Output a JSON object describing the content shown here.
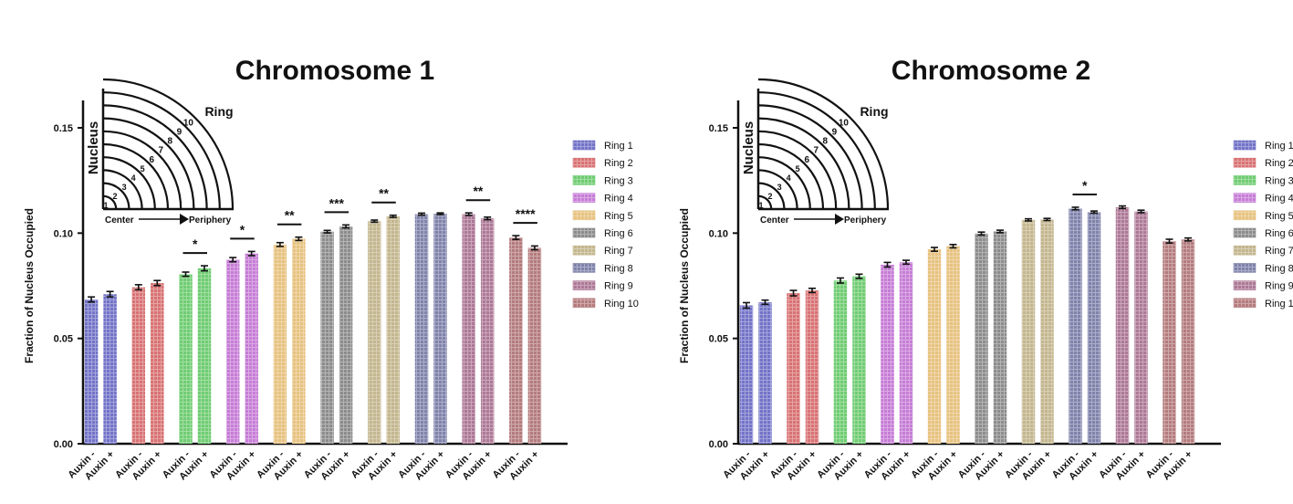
{
  "chart_data": [
    {
      "type": "bar",
      "title": "Chromosome 1",
      "ylabel": "Fraction of Nucleus Occupied",
      "ylim": [
        0,
        0.16
      ],
      "yticks": [
        "0.00",
        "0.05",
        "0.10",
        "0.15"
      ],
      "groups": [
        "Ring 1",
        "Ring 2",
        "Ring 3",
        "Ring 4",
        "Ring 5",
        "Ring 6",
        "Ring 7",
        "Ring 8",
        "Ring 9",
        "Ring 10"
      ],
      "conditions": [
        "Auxin -",
        "Auxin +"
      ],
      "series": [
        {
          "name": "Auxin -",
          "values": [
            0.0685,
            0.0743,
            0.0805,
            0.0874,
            0.0946,
            0.1007,
            0.1057,
            0.109,
            0.109,
            0.0979
          ],
          "errors": [
            0.0012,
            0.0012,
            0.001,
            0.001,
            0.0009,
            0.0006,
            0.0005,
            0.0005,
            0.0006,
            0.0009
          ]
        },
        {
          "name": "Auxin +",
          "values": [
            0.071,
            0.0763,
            0.0833,
            0.0903,
            0.0973,
            0.1032,
            0.108,
            0.1092,
            0.107,
            0.093
          ],
          "errors": [
            0.0013,
            0.0012,
            0.0012,
            0.001,
            0.0008,
            0.0007,
            0.0005,
            0.0004,
            0.0006,
            0.0009
          ]
        }
      ],
      "significance": [
        "",
        "",
        "*",
        "*",
        "**",
        "***",
        "**",
        "",
        "**",
        "****"
      ],
      "legend": [
        "Ring 1",
        "Ring 2",
        "Ring 3",
        "Ring 4",
        "Ring 5",
        "Ring 6",
        "Ring 7",
        "Ring 8",
        "Ring 9",
        "Ring 10"
      ],
      "legend_position": "right",
      "grid": false
    },
    {
      "type": "bar",
      "title": "Chromosome 2",
      "ylabel": "Fraction of Nucleus Occupied",
      "ylim": [
        0,
        0.16
      ],
      "yticks": [
        "0.00",
        "0.05",
        "0.10",
        "0.15"
      ],
      "groups": [
        "Ring 1",
        "Ring 2",
        "Ring 3",
        "Ring 4",
        "Ring 5",
        "Ring 6",
        "Ring 7",
        "Ring 8",
        "Ring 9",
        "Ring 10"
      ],
      "conditions": [
        "Auxin -",
        "Auxin +"
      ],
      "series": [
        {
          "name": "Auxin -",
          "values": [
            0.0657,
            0.0715,
            0.0775,
            0.085,
            0.0923,
            0.0998,
            0.1063,
            0.1117,
            0.1123,
            0.0962
          ],
          "errors": [
            0.0013,
            0.0013,
            0.0012,
            0.0011,
            0.0009,
            0.0007,
            0.0005,
            0.0006,
            0.0006,
            0.0009
          ]
        },
        {
          "name": "Auxin +",
          "values": [
            0.0672,
            0.0728,
            0.0795,
            0.0862,
            0.0938,
            0.1008,
            0.1065,
            0.11,
            0.1103,
            0.097
          ],
          "errors": [
            0.001,
            0.001,
            0.001,
            0.0009,
            0.0008,
            0.0006,
            0.0005,
            0.0005,
            0.0006,
            0.0007
          ]
        }
      ],
      "significance": [
        "",
        "",
        "",
        "",
        "",
        "",
        "",
        "*",
        "",
        ""
      ],
      "legend": [
        "Ring 1",
        "Ring 2",
        "Ring 3",
        "Ring 4",
        "Ring 5",
        "Ring 6",
        "Ring 7",
        "Ring 8",
        "Ring 9",
        "Ring 10"
      ],
      "legend_position": "right",
      "grid": false
    }
  ],
  "palette": [
    "#7273c7",
    "#d87273",
    "#6fcc72",
    "#c67cd6",
    "#e7c27f",
    "#8c8c8c",
    "#c3b68e",
    "#7f82ab",
    "#ad7896",
    "#b47b7d"
  ],
  "inset": {
    "axis_label": "Nucleus",
    "ring_label": "Ring",
    "ring_numbers": [
      "1",
      "2",
      "3",
      "4",
      "5",
      "6",
      "7",
      "8",
      "9",
      "10"
    ],
    "center_label": "Center",
    "periphery_label": "Periphery"
  }
}
